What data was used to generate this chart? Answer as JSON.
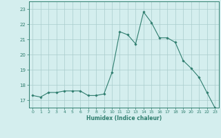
{
  "x": [
    0,
    1,
    2,
    3,
    4,
    5,
    6,
    7,
    8,
    9,
    10,
    11,
    12,
    13,
    14,
    15,
    16,
    17,
    18,
    19,
    20,
    21,
    22,
    23
  ],
  "y": [
    17.3,
    17.2,
    17.5,
    17.5,
    17.6,
    17.6,
    17.6,
    17.3,
    17.3,
    17.4,
    18.8,
    21.5,
    21.3,
    20.7,
    22.8,
    22.1,
    21.1,
    21.1,
    20.8,
    19.6,
    19.1,
    18.5,
    17.5,
    16.5
  ],
  "xlabel": "Humidex (Indice chaleur)",
  "ylim": [
    16.5,
    23.5
  ],
  "xlim": [
    -0.5,
    23.5
  ],
  "yticks": [
    17,
    18,
    19,
    20,
    21,
    22,
    23
  ],
  "xticks": [
    0,
    1,
    2,
    3,
    4,
    5,
    6,
    7,
    8,
    9,
    10,
    11,
    12,
    13,
    14,
    15,
    16,
    17,
    18,
    19,
    20,
    21,
    22,
    23
  ],
  "line_color": "#2e7d6e",
  "marker_color": "#2e7d6e",
  "bg_color": "#d4eeee",
  "grid_color": "#aacccc",
  "text_color": "#2e7d6e"
}
